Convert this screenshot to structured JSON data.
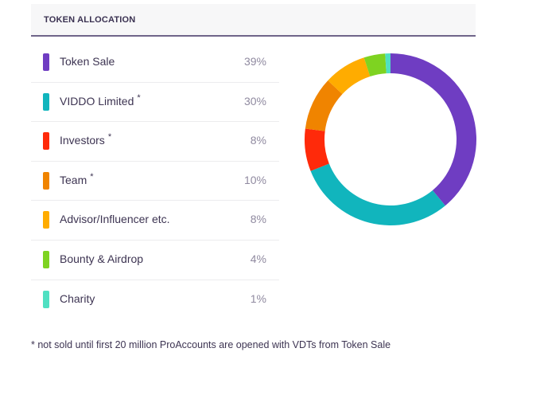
{
  "header": {
    "title": "TOKEN ALLOCATION"
  },
  "chart_data": {
    "type": "pie",
    "variant": "donut",
    "title": "TOKEN ALLOCATION",
    "start_angle": "top",
    "direction": "clockwise",
    "categories": [
      "Token Sale",
      "VIDDO Limited",
      "Investors",
      "Team",
      "Advisor/Influencer etc.",
      "Bounty & Airdrop",
      "Charity"
    ],
    "values": [
      39,
      30,
      8,
      10,
      8,
      4,
      1
    ],
    "colors": [
      "#6f3dc2",
      "#11b5bd",
      "#ff2a0a",
      "#f08400",
      "#ffac00",
      "#7ed321",
      "#4fe0c2"
    ],
    "legend_placement": "left"
  },
  "legend": {
    "items": [
      {
        "label": "Token Sale",
        "percent": "39%",
        "footnote_mark": "",
        "color": "#6f3dc2"
      },
      {
        "label": "VIDDO Limited",
        "percent": "30%",
        "footnote_mark": "*",
        "color": "#11b5bd"
      },
      {
        "label": "Investors",
        "percent": "8%",
        "footnote_mark": "*",
        "color": "#ff2a0a"
      },
      {
        "label": "Team",
        "percent": "10%",
        "footnote_mark": "*",
        "color": "#f08400"
      },
      {
        "label": "Advisor/Influencer etc.",
        "percent": "8%",
        "footnote_mark": "",
        "color": "#ffac00"
      },
      {
        "label": "Bounty & Airdrop",
        "percent": "4%",
        "footnote_mark": "",
        "color": "#7ed321"
      },
      {
        "label": "Charity",
        "percent": "1%",
        "footnote_mark": "",
        "color": "#4fe0c2"
      }
    ]
  },
  "footnote": "* not sold until first 20 million ProAccounts are opened with VDTs from Token Sale"
}
